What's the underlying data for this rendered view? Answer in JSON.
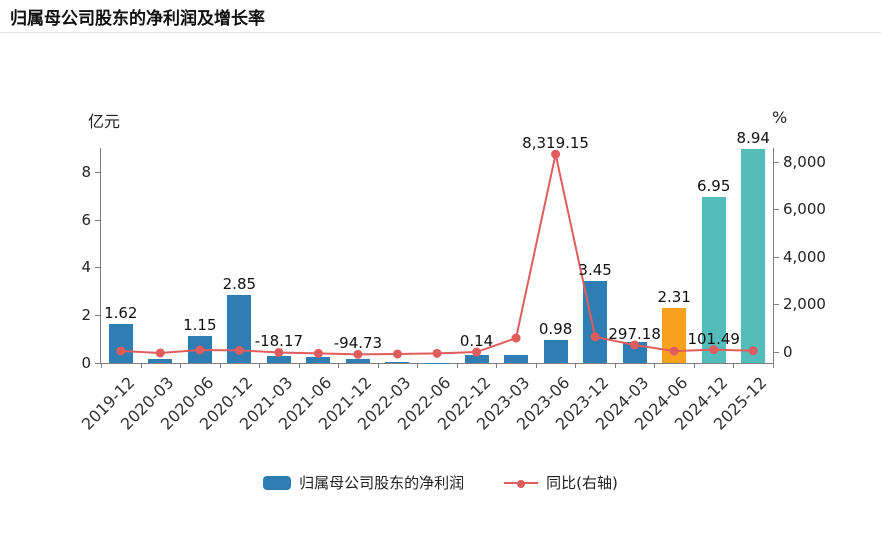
{
  "header": {
    "title": "归属母公司股东的净利润及增长率"
  },
  "axes": {
    "left_unit": "亿元",
    "right_unit": "%",
    "left_ticks": [
      "0",
      "2",
      "4",
      "6",
      "8"
    ],
    "right_ticks": [
      "0",
      "2,000",
      "4,000",
      "6,000",
      "8,000"
    ]
  },
  "legend_items": [
    {
      "label": "归属母公司股东的净利润",
      "type": "bar"
    },
    {
      "label": "同比(右轴)",
      "type": "line"
    }
  ],
  "colors": {
    "bar_blue": "#2e7eb3",
    "bar_orange": "#f6a21e",
    "bar_teal": "#55bcbc",
    "line_red": "#e15c5c",
    "axis_gray": "#808080"
  },
  "chart_data": {
    "type": "bar+line",
    "title": "归属母公司股东的净利润及增长率",
    "categories": [
      "2019-12",
      "2020-03",
      "2020-06",
      "2020-12",
      "2021-03",
      "2021-06",
      "2021-12",
      "2022-03",
      "2022-06",
      "2022-12",
      "2023-03",
      "2023-06",
      "2023-12",
      "2024-03",
      "2024-06",
      "2024-12",
      "2025-12"
    ],
    "series": [
      {
        "name": "归属母公司股东的净利润",
        "type": "bar",
        "axis": "left",
        "unit": "亿元",
        "values": [
          1.62,
          0.15,
          1.15,
          2.85,
          0.3,
          0.27,
          0.18,
          0.05,
          0.02,
          0.35,
          0.33,
          0.98,
          3.45,
          0.88,
          2.31,
          6.95,
          8.94
        ],
        "bar_colors": [
          "#2e7eb3",
          "#2e7eb3",
          "#2e7eb3",
          "#2e7eb3",
          "#2e7eb3",
          "#2e7eb3",
          "#2e7eb3",
          "#2e7eb3",
          "#2e7eb3",
          "#2e7eb3",
          "#2e7eb3",
          "#2e7eb3",
          "#2e7eb3",
          "#2e7eb3",
          "#f6a21e",
          "#55bcbc",
          "#55bcbc"
        ]
      },
      {
        "name": "同比(右轴)",
        "type": "line",
        "axis": "right",
        "unit": "%",
        "values": [
          46,
          -38,
          85,
          70,
          -18.17,
          -55,
          -94.73,
          -80,
          -55,
          0.14,
          590,
          8319.15,
          640,
          297.18,
          40,
          101.49,
          55
        ]
      }
    ],
    "left_axis": {
      "label": "亿元",
      "min": 0,
      "max": 9,
      "ticks": [
        0,
        2,
        4,
        6,
        8
      ]
    },
    "right_axis": {
      "label": "%",
      "min": -460,
      "max": 8580,
      "ticks": [
        0,
        2000,
        4000,
        6000,
        8000
      ]
    },
    "grid": false,
    "legend_position": "bottom",
    "point_labels": [
      {
        "i": 0,
        "on": "bar",
        "text": "1.62"
      },
      {
        "i": 2,
        "on": "bar",
        "text": "1.15"
      },
      {
        "i": 3,
        "on": "bar",
        "text": "2.85"
      },
      {
        "i": 4,
        "on": "line",
        "text": "-18.17"
      },
      {
        "i": 6,
        "on": "line",
        "text": "-94.73"
      },
      {
        "i": 9,
        "on": "line",
        "text": "0.14"
      },
      {
        "i": 11,
        "on": "line",
        "text": "8,319.15"
      },
      {
        "i": 11,
        "on": "bar",
        "text": "0.98"
      },
      {
        "i": 12,
        "on": "bar",
        "text": "3.45"
      },
      {
        "i": 13,
        "on": "line",
        "text": "297.18"
      },
      {
        "i": 14,
        "on": "bar",
        "text": "2.31"
      },
      {
        "i": 15,
        "on": "bar",
        "text": "6.95"
      },
      {
        "i": 15,
        "on": "line",
        "text": "101.49"
      },
      {
        "i": 16,
        "on": "bar",
        "text": "8.94"
      }
    ]
  }
}
